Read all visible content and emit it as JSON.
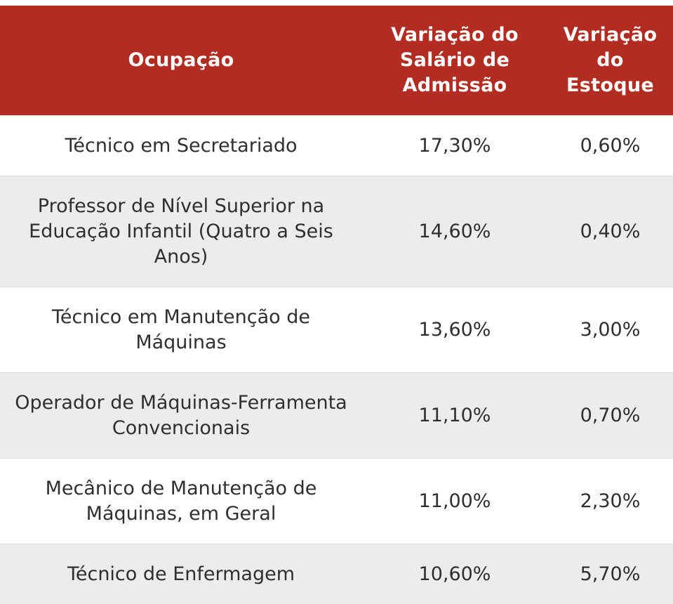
{
  "table": {
    "headers": {
      "occupation": "Ocupação",
      "salary_change": "Variação do Salário de Admissão",
      "stock_change": "Variação do Estoque"
    },
    "rows": [
      {
        "occupation": "Técnico em Secretariado",
        "salary_change": "17,30%",
        "stock_change": "0,60%"
      },
      {
        "occupation": "Professor de Nível Superior na Educação Infantil (Quatro a Seis Anos)",
        "salary_change": "14,60%",
        "stock_change": "0,40%"
      },
      {
        "occupation": "Técnico em Manutenção de Máquinas",
        "salary_change": "13,60%",
        "stock_change": "3,00%"
      },
      {
        "occupation": "Operador de Máquinas-Ferramenta Convencionais",
        "salary_change": "11,10%",
        "stock_change": "0,70%"
      },
      {
        "occupation": "Mecânico de Manutenção de Máquinas, em Geral",
        "salary_change": "11,00%",
        "stock_change": "2,30%"
      },
      {
        "occupation": "Técnico de Enfermagem",
        "salary_change": "10,60%",
        "stock_change": "5,70%"
      }
    ]
  },
  "colors": {
    "header_background": "#b32c21",
    "header_text": "#ffffff",
    "row_alt_background": "#ececec",
    "body_text": "#2f2f2f"
  }
}
